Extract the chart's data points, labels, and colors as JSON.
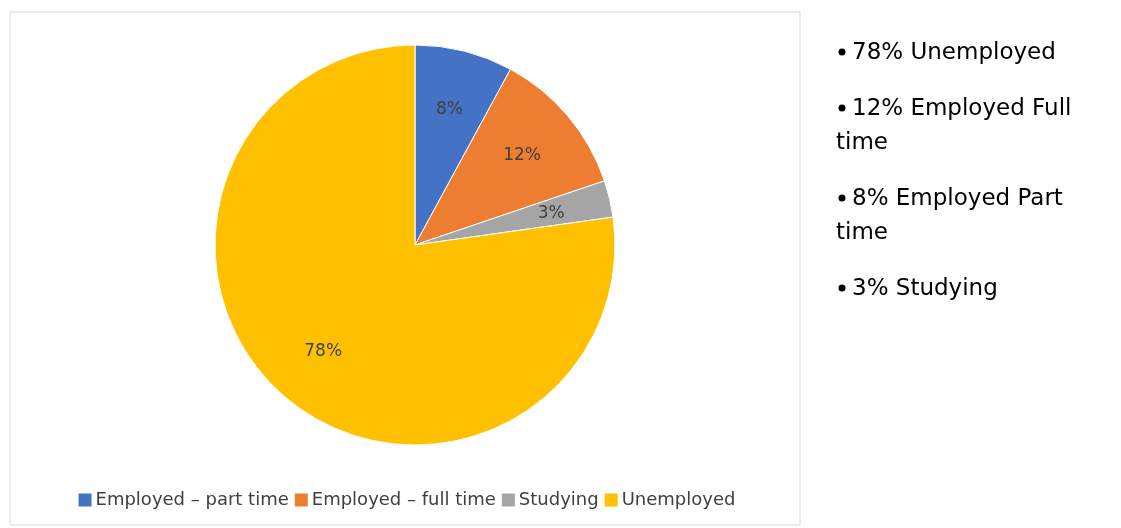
{
  "chart_data": {
    "type": "pie",
    "categories": [
      "Employed – part time",
      "Employed – full time",
      "Studying",
      "Unemployed"
    ],
    "values": [
      8,
      12,
      3,
      78
    ],
    "colors": [
      "#4472c4",
      "#ed7d31",
      "#a5a5a5",
      "#ffc000"
    ],
    "value_labels": [
      "8%",
      "12%",
      "3%",
      "78%"
    ],
    "legend": "bottom",
    "annotations": [
      "78% Unemployed",
      "12% Employed Full time",
      "8% Employed Part time",
      "3% Studying"
    ]
  }
}
